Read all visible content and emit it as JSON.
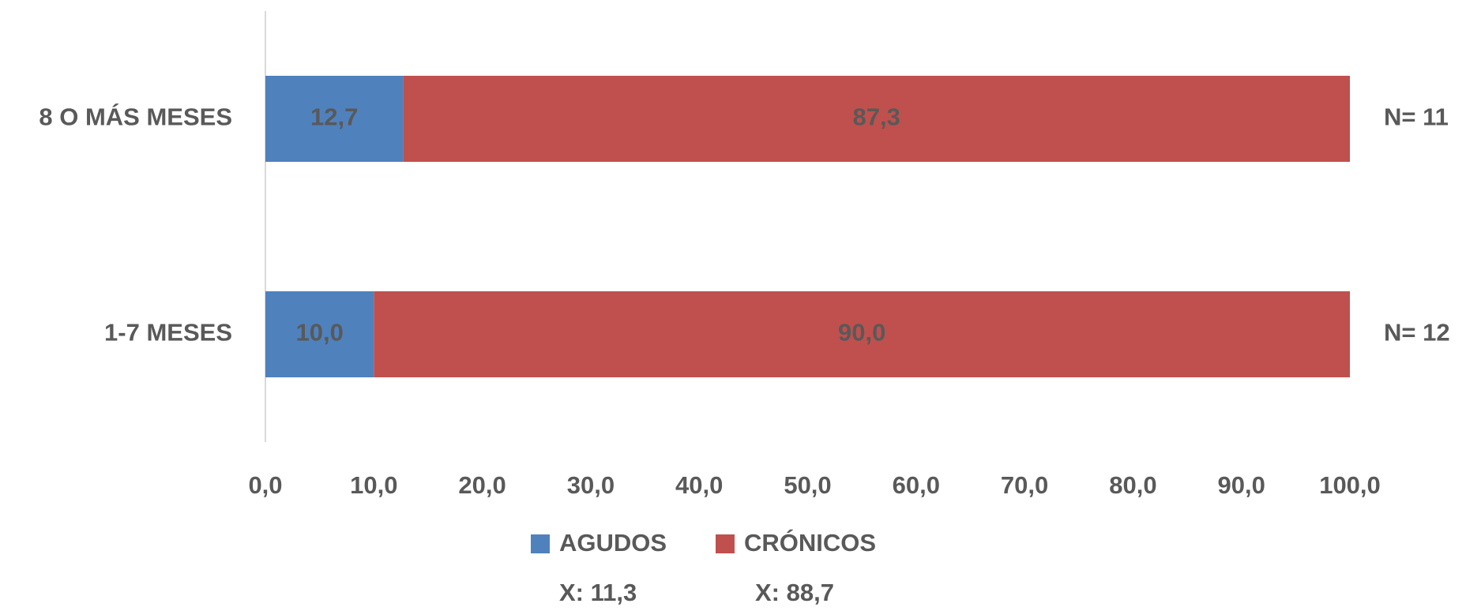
{
  "chart_data": {
    "type": "stacked-bar-horizontal",
    "categories": [
      "8 O MÁS MESES",
      "1-7 MESES"
    ],
    "category_notes": [
      "N= 11",
      "N= 12"
    ],
    "series": [
      {
        "name": "AGUDOS",
        "color": "#4f81bd",
        "values": [
          12.7,
          10.0
        ],
        "value_labels": [
          "12,7",
          "10,0"
        ],
        "note": "X: 11,3"
      },
      {
        "name": "CRÓNICOS",
        "color": "#c0504d",
        "values": [
          87.3,
          90.0
        ],
        "value_labels": [
          "87,3",
          "90,0"
        ],
        "note": "X: 88,7"
      }
    ],
    "xlim": [
      0,
      100
    ],
    "xticks": [
      {
        "value": 0,
        "label": "0,0"
      },
      {
        "value": 10,
        "label": "10,0"
      },
      {
        "value": 20,
        "label": "20,0"
      },
      {
        "value": 30,
        "label": "30,0"
      },
      {
        "value": 40,
        "label": "40,0"
      },
      {
        "value": 50,
        "label": "50,0"
      },
      {
        "value": 60,
        "label": "60,0"
      },
      {
        "value": 70,
        "label": "70,0"
      },
      {
        "value": 80,
        "label": "80,0"
      },
      {
        "value": 90,
        "label": "90,0"
      },
      {
        "value": 100,
        "label": "100,0"
      }
    ],
    "legend": "bottom"
  }
}
